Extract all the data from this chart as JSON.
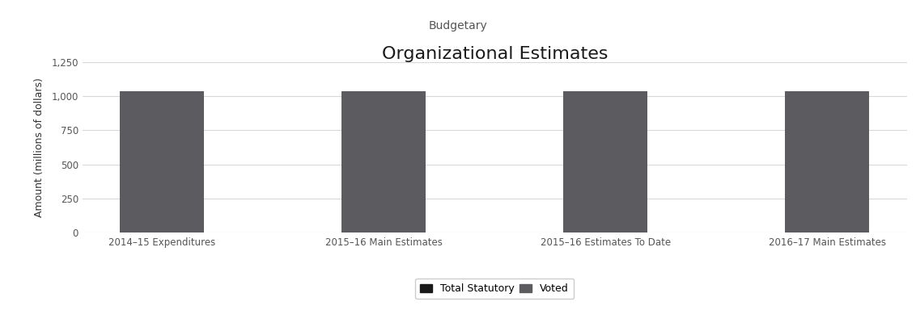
{
  "title": "Organizational Estimates",
  "subtitle": "Budgetary",
  "categories": [
    "2014–15 Expenditures",
    "2015–16 Main Estimates",
    "2015–16 Estimates To Date",
    "2016–17 Main Estimates"
  ],
  "voted_values": [
    1035,
    1035,
    1035,
    1035
  ],
  "statutory_values": [
    0,
    0,
    0,
    0
  ],
  "bar_color": "#5c5c60",
  "statutory_color": "#1a1a1a",
  "ylabel": "Amount (millions of dollars)",
  "ylim": [
    0,
    1250
  ],
  "yticks": [
    0,
    250,
    500,
    750,
    1000,
    1250
  ],
  "ytick_labels": [
    "0",
    "250",
    "500",
    "750",
    "1,000",
    "1,250"
  ],
  "background_color": "#ffffff",
  "grid_color": "#d8d8d8",
  "legend_labels": [
    "Total Statutory",
    "Voted"
  ],
  "legend_colors": [
    "#1a1a1a",
    "#5c5c60"
  ],
  "title_fontsize": 16,
  "subtitle_fontsize": 10,
  "tick_fontsize": 8.5,
  "ylabel_fontsize": 9,
  "bar_width": 0.38
}
